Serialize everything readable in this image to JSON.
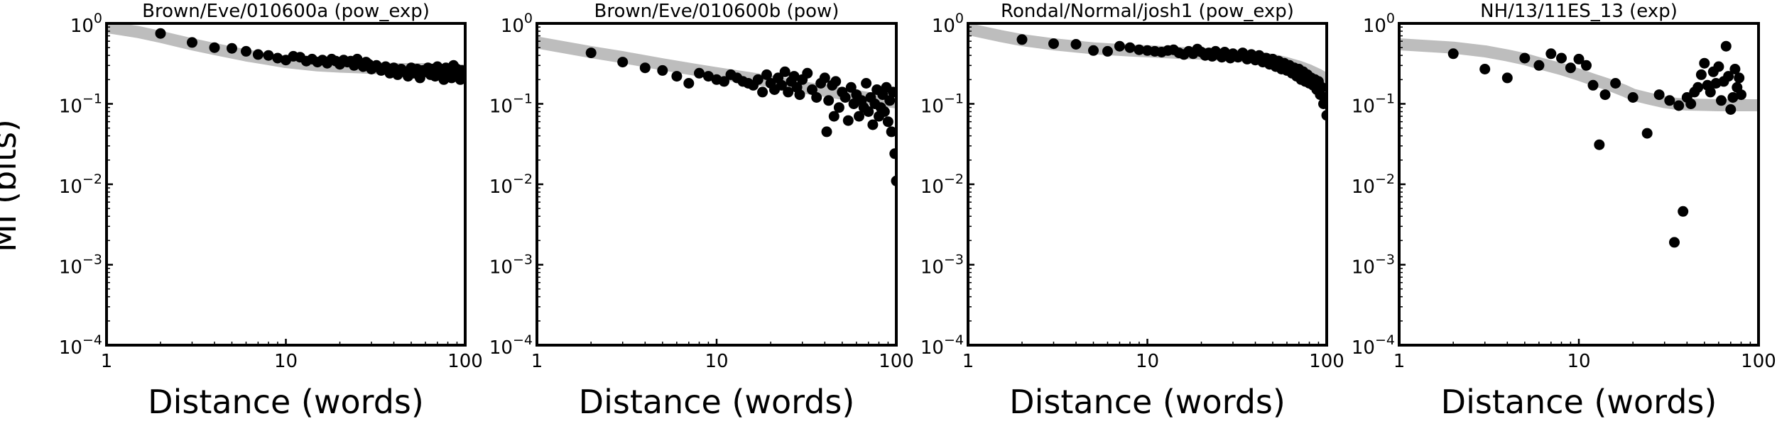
{
  "figure": {
    "ylabel": "MI (bits)",
    "xlabel": "Distance (words)"
  },
  "chart_data": [
    {
      "type": "scatter",
      "title": "Brown/Eve/010600a (pow_exp)",
      "xlabel": "Distance (words)",
      "ylabel": "MI (bits)",
      "xscale": "log",
      "yscale": "log",
      "xlim": [
        1,
        100
      ],
      "ylim": [
        0.0001,
        1
      ],
      "x_ticks": [
        "1",
        "10",
        "100"
      ],
      "y_ticks": [
        "10^-4",
        "10^-3",
        "10^-2",
        "10^-1",
        "10^0"
      ],
      "fit": {
        "x": [
          1,
          1.5,
          2,
          3,
          4,
          6,
          8,
          10,
          15,
          20,
          30,
          40,
          60,
          80,
          100
        ],
        "y": [
          0.9,
          0.78,
          0.68,
          0.55,
          0.48,
          0.4,
          0.36,
          0.33,
          0.3,
          0.29,
          0.28,
          0.27,
          0.27,
          0.26,
          0.26
        ]
      },
      "points": {
        "x": [
          2,
          3,
          4,
          5,
          6,
          7,
          8,
          9,
          10,
          11,
          12,
          13,
          14,
          15,
          16,
          17,
          18,
          19,
          20,
          21,
          22,
          23,
          24,
          25,
          26,
          27,
          28,
          29,
          30,
          32,
          34,
          36,
          38,
          40,
          42,
          44,
          46,
          48,
          50,
          52,
          54,
          56,
          58,
          60,
          62,
          64,
          66,
          68,
          70,
          72,
          74,
          76,
          78,
          80,
          82,
          84,
          86,
          88,
          90,
          92,
          94,
          96,
          98,
          100
        ],
        "y": [
          0.75,
          0.58,
          0.5,
          0.49,
          0.45,
          0.41,
          0.4,
          0.37,
          0.35,
          0.39,
          0.38,
          0.34,
          0.36,
          0.33,
          0.35,
          0.32,
          0.36,
          0.34,
          0.31,
          0.35,
          0.33,
          0.34,
          0.3,
          0.36,
          0.32,
          0.29,
          0.33,
          0.31,
          0.27,
          0.3,
          0.26,
          0.29,
          0.24,
          0.28,
          0.23,
          0.27,
          0.25,
          0.22,
          0.28,
          0.24,
          0.27,
          0.21,
          0.26,
          0.25,
          0.28,
          0.23,
          0.27,
          0.22,
          0.29,
          0.24,
          0.26,
          0.2,
          0.28,
          0.23,
          0.25,
          0.21,
          0.3,
          0.22,
          0.27,
          0.24,
          0.2,
          0.26,
          0.23,
          0.25
        ]
      }
    },
    {
      "type": "scatter",
      "title": "Brown/Eve/010600b (pow)",
      "xlabel": "Distance (words)",
      "ylabel": "MI (bits)",
      "xscale": "log",
      "yscale": "log",
      "xlim": [
        1,
        100
      ],
      "ylim": [
        0.0001,
        1
      ],
      "x_ticks": [
        "1",
        "10",
        "100"
      ],
      "y_ticks": [
        "10^-4",
        "10^-3",
        "10^-2",
        "10^-1",
        "10^0"
      ],
      "fit": {
        "x": [
          1,
          2,
          3,
          5,
          8,
          10,
          15,
          20,
          30,
          40,
          60,
          80,
          100
        ],
        "y": [
          0.58,
          0.44,
          0.38,
          0.31,
          0.26,
          0.24,
          0.21,
          0.19,
          0.16,
          0.145,
          0.125,
          0.112,
          0.104
        ]
      },
      "points": {
        "x": [
          2,
          3,
          4,
          5,
          6,
          7,
          8,
          9,
          10,
          11,
          12,
          13,
          14,
          15,
          16,
          17,
          18,
          19,
          20,
          21,
          22,
          23,
          24,
          25,
          26,
          27,
          28,
          29,
          30,
          32,
          34,
          36,
          38,
          40,
          41,
          42,
          44,
          45,
          46,
          48,
          50,
          52,
          54,
          56,
          58,
          60,
          62,
          64,
          66,
          68,
          70,
          72,
          74,
          76,
          78,
          80,
          82,
          84,
          86,
          88,
          90,
          92,
          94,
          96,
          98,
          100
        ],
        "y": [
          0.43,
          0.33,
          0.28,
          0.26,
          0.22,
          0.18,
          0.24,
          0.22,
          0.2,
          0.19,
          0.23,
          0.21,
          0.19,
          0.18,
          0.17,
          0.2,
          0.14,
          0.23,
          0.18,
          0.15,
          0.21,
          0.17,
          0.25,
          0.14,
          0.19,
          0.22,
          0.16,
          0.13,
          0.2,
          0.24,
          0.15,
          0.12,
          0.18,
          0.21,
          0.045,
          0.11,
          0.17,
          0.07,
          0.19,
          0.09,
          0.14,
          0.12,
          0.062,
          0.16,
          0.1,
          0.13,
          0.07,
          0.11,
          0.09,
          0.18,
          0.08,
          0.12,
          0.055,
          0.1,
          0.15,
          0.07,
          0.09,
          0.13,
          0.08,
          0.16,
          0.06,
          0.11,
          0.045,
          0.14,
          0.024,
          0.011
        ]
      }
    },
    {
      "type": "scatter",
      "title": "Rondal/Normal/josh1 (pow_exp)",
      "xlabel": "Distance (words)",
      "ylabel": "MI (bits)",
      "xscale": "log",
      "yscale": "log",
      "xlim": [
        1,
        100
      ],
      "ylim": [
        0.0001,
        1
      ],
      "x_ticks": [
        "1",
        "10",
        "100"
      ],
      "y_ticks": [
        "10^-4",
        "10^-3",
        "10^-2",
        "10^-1",
        "10^0"
      ],
      "fit": {
        "x": [
          1,
          1.5,
          2,
          3,
          5,
          8,
          10,
          15,
          20,
          30,
          40,
          50,
          60,
          70,
          80,
          90,
          100
        ],
        "y": [
          0.85,
          0.7,
          0.62,
          0.55,
          0.49,
          0.46,
          0.45,
          0.43,
          0.42,
          0.4,
          0.38,
          0.35,
          0.32,
          0.29,
          0.26,
          0.23,
          0.2
        ]
      },
      "points": {
        "x": [
          2,
          3,
          4,
          5,
          6,
          7,
          8,
          9,
          10,
          11,
          12,
          13,
          14,
          15,
          16,
          17,
          18,
          19,
          20,
          21,
          22,
          23,
          24,
          25,
          26,
          27,
          28,
          29,
          30,
          32,
          34,
          36,
          38,
          40,
          42,
          44,
          46,
          48,
          50,
          52,
          54,
          56,
          58,
          60,
          62,
          64,
          66,
          68,
          70,
          72,
          74,
          76,
          78,
          80,
          82,
          84,
          86,
          88,
          90,
          92,
          94,
          96,
          98,
          100
        ],
        "y": [
          0.63,
          0.56,
          0.55,
          0.46,
          0.45,
          0.52,
          0.5,
          0.47,
          0.46,
          0.45,
          0.44,
          0.46,
          0.47,
          0.43,
          0.41,
          0.45,
          0.42,
          0.48,
          0.44,
          0.4,
          0.43,
          0.39,
          0.45,
          0.41,
          0.38,
          0.44,
          0.4,
          0.37,
          0.42,
          0.38,
          0.43,
          0.36,
          0.41,
          0.35,
          0.4,
          0.33,
          0.37,
          0.31,
          0.36,
          0.29,
          0.34,
          0.27,
          0.32,
          0.26,
          0.3,
          0.24,
          0.28,
          0.22,
          0.27,
          0.2,
          0.25,
          0.19,
          0.23,
          0.18,
          0.21,
          0.17,
          0.2,
          0.15,
          0.19,
          0.13,
          0.16,
          0.1,
          0.12,
          0.072
        ]
      }
    },
    {
      "type": "scatter",
      "title": "NH/13/11ES_13 (exp)",
      "xlabel": "Distance (words)",
      "ylabel": "MI (bits)",
      "xscale": "log",
      "yscale": "log",
      "xlim": [
        1,
        100
      ],
      "ylim": [
        0.0001,
        1
      ],
      "x_ticks": [
        "1",
        "10",
        "100"
      ],
      "y_ticks": [
        "10^-4",
        "10^-3",
        "10^-2",
        "10^-1",
        "10^0"
      ],
      "fit": {
        "x": [
          1,
          2,
          3,
          4,
          5,
          6,
          8,
          10,
          12,
          15,
          18,
          20,
          25,
          30,
          35,
          40,
          50,
          60,
          80,
          100
        ],
        "y": [
          0.55,
          0.5,
          0.45,
          0.4,
          0.36,
          0.32,
          0.27,
          0.23,
          0.2,
          0.17,
          0.145,
          0.13,
          0.115,
          0.105,
          0.1,
          0.098,
          0.097,
          0.096,
          0.096,
          0.096
        ]
      },
      "points": {
        "x": [
          2,
          3,
          4,
          5,
          6,
          7,
          8,
          9,
          10,
          11,
          12,
          13,
          14,
          16,
          20,
          24,
          28,
          32,
          34,
          36,
          38,
          40,
          42,
          44,
          46,
          48,
          50,
          52,
          54,
          56,
          58,
          60,
          62,
          64,
          66,
          68,
          70,
          72,
          74,
          76,
          78,
          80
        ],
        "y": [
          0.42,
          0.27,
          0.21,
          0.37,
          0.3,
          0.42,
          0.37,
          0.28,
          0.36,
          0.3,
          0.17,
          0.031,
          0.13,
          0.18,
          0.12,
          0.043,
          0.13,
          0.11,
          0.0019,
          0.095,
          0.0046,
          0.12,
          0.1,
          0.14,
          0.16,
          0.23,
          0.32,
          0.17,
          0.14,
          0.25,
          0.18,
          0.29,
          0.11,
          0.19,
          0.52,
          0.22,
          0.085,
          0.12,
          0.27,
          0.16,
          0.21,
          0.13
        ]
      }
    }
  ]
}
